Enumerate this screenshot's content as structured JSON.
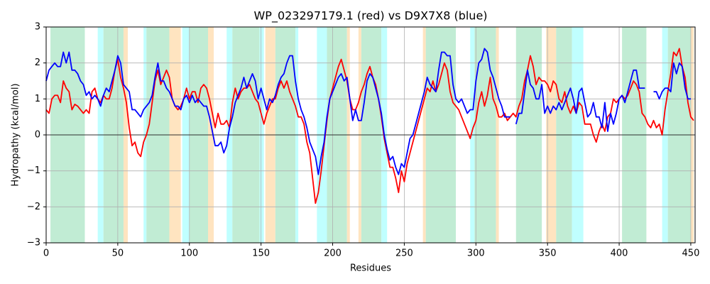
{
  "chart_data": {
    "type": "line",
    "title": "WP_023297179.1 (red) vs D9X7X8 (blue)",
    "x_label": "Residues",
    "y_label": "Hydropathy (kcal/mol)",
    "xlim": [
      0,
      453
    ],
    "ylim": [
      -3,
      3
    ],
    "xticks": [
      0,
      50,
      100,
      150,
      200,
      250,
      300,
      350,
      400,
      450
    ],
    "yticks": [
      {
        "value": -3,
        "label": "−3"
      },
      {
        "value": -2,
        "label": "−2"
      },
      {
        "value": -1,
        "label": "−1"
      },
      0,
      1,
      2,
      3
    ],
    "grid": true,
    "zero_line": true,
    "regions": [
      {
        "x": [
          3,
          27
        ],
        "color": "#c1ecd4"
      },
      {
        "x": [
          36,
          40
        ],
        "color": "#c0ffff"
      },
      {
        "x": [
          40,
          54
        ],
        "color": "#c1ecd4"
      },
      {
        "x": [
          54,
          57
        ],
        "color": "#ffe4c0"
      },
      {
        "x": [
          68,
          70
        ],
        "color": "#c0ffff"
      },
      {
        "x": [
          70,
          86
        ],
        "color": "#c1ecd4"
      },
      {
        "x": [
          86,
          94
        ],
        "color": "#ffe4c0"
      },
      {
        "x": [
          95,
          100
        ],
        "color": "#c0ffff"
      },
      {
        "x": [
          100,
          113
        ],
        "color": "#c1ecd4"
      },
      {
        "x": [
          113,
          117
        ],
        "color": "#ffe4c0"
      },
      {
        "x": [
          126,
          130
        ],
        "color": "#c0ffff"
      },
      {
        "x": [
          130,
          149
        ],
        "color": "#c1ecd4"
      },
      {
        "x": [
          149,
          152
        ],
        "color": "#c0ffff"
      },
      {
        "x": [
          153,
          160
        ],
        "color": "#ffe4c0"
      },
      {
        "x": [
          160,
          174
        ],
        "color": "#c1ecd4"
      },
      {
        "x": [
          174,
          176
        ],
        "color": "#c0ffff"
      },
      {
        "x": [
          189,
          196
        ],
        "color": "#c0ffff"
      },
      {
        "x": [
          196,
          210
        ],
        "color": "#c1ecd4"
      },
      {
        "x": [
          210,
          212
        ],
        "color": "#ffe4c0"
      },
      {
        "x": [
          218,
          220
        ],
        "color": "#ffe4c0"
      },
      {
        "x": [
          220,
          234
        ],
        "color": "#c1ecd4"
      },
      {
        "x": [
          234,
          238
        ],
        "color": "#c0ffff"
      },
      {
        "x": [
          263,
          265
        ],
        "color": "#ffe4c0"
      },
      {
        "x": [
          265,
          286
        ],
        "color": "#c1ecd4"
      },
      {
        "x": [
          296,
          299
        ],
        "color": "#c0ffff"
      },
      {
        "x": [
          299,
          314
        ],
        "color": "#c1ecd4"
      },
      {
        "x": [
          314,
          316
        ],
        "color": "#ffe4c0"
      },
      {
        "x": [
          328,
          346
        ],
        "color": "#c1ecd4"
      },
      {
        "x": [
          349,
          356
        ],
        "color": "#ffe4c0"
      },
      {
        "x": [
          356,
          367
        ],
        "color": "#c1ecd4"
      },
      {
        "x": [
          367,
          375
        ],
        "color": "#c0ffff"
      },
      {
        "x": [
          402,
          419
        ],
        "color": "#c1ecd4"
      },
      {
        "x": [
          430,
          434
        ],
        "color": "#c0ffff"
      },
      {
        "x": [
          434,
          450
        ],
        "color": "#c1ecd4"
      },
      {
        "x": [
          450,
          452
        ],
        "color": "#ffe4c0"
      }
    ],
    "x": [
      0,
      2,
      4,
      6,
      8,
      10,
      12,
      14,
      16,
      18,
      20,
      22,
      24,
      26,
      28,
      30,
      32,
      34,
      36,
      38,
      40,
      42,
      44,
      46,
      48,
      50,
      52,
      54,
      56,
      58,
      60,
      62,
      64,
      66,
      68,
      70,
      72,
      74,
      76,
      78,
      80,
      82,
      84,
      86,
      88,
      90,
      92,
      94,
      96,
      98,
      100,
      102,
      104,
      106,
      108,
      110,
      112,
      114,
      116,
      118,
      120,
      122,
      124,
      126,
      128,
      130,
      132,
      134,
      136,
      138,
      140,
      142,
      144,
      146,
      148,
      150,
      152,
      154,
      156,
      158,
      160,
      162,
      164,
      166,
      168,
      170,
      172,
      174,
      176,
      178,
      180,
      182,
      184,
      186,
      188,
      190,
      192,
      194,
      196,
      198,
      200,
      202,
      204,
      206,
      208,
      210,
      212,
      214,
      216,
      218,
      220,
      222,
      224,
      226,
      228,
      230,
      232,
      234,
      236,
      238,
      240,
      242,
      244,
      246,
      248,
      250,
      252,
      254,
      256,
      258,
      260,
      262,
      264,
      266,
      268,
      270,
      272,
      274,
      276,
      278,
      280,
      282,
      284,
      286,
      288,
      290,
      292,
      294,
      296,
      298,
      300,
      302,
      304,
      306,
      308,
      310,
      312,
      314,
      316,
      318,
      320,
      322,
      324,
      326,
      328,
      330,
      332,
      334,
      336,
      338,
      340,
      342,
      344,
      346,
      348,
      350,
      352,
      354,
      356,
      358,
      360,
      362,
      364,
      366,
      368,
      370,
      372,
      374,
      376,
      378,
      380,
      382,
      384,
      386,
      388,
      390,
      392,
      394,
      396,
      398,
      400,
      402,
      404,
      406,
      408,
      410,
      412,
      414,
      416,
      418,
      420,
      422,
      424,
      426,
      428,
      430,
      432,
      434,
      436,
      438,
      440,
      442,
      444,
      446,
      448,
      450,
      452
    ],
    "series": [
      {
        "color": "red",
        "values": [
          0.7,
          0.6,
          1.0,
          1.1,
          1.1,
          0.9,
          1.5,
          1.3,
          1.2,
          0.7,
          0.85,
          0.8,
          0.7,
          0.6,
          0.7,
          0.6,
          1.2,
          1.3,
          1.0,
          0.9,
          1.1,
          1.0,
          1.0,
          1.3,
          1.8,
          2.1,
          1.6,
          1.3,
          0.9,
          0.2,
          -0.3,
          -0.2,
          -0.5,
          -0.6,
          -0.2,
          0.0,
          0.3,
          0.9,
          1.5,
          1.8,
          1.4,
          1.6,
          1.8,
          1.6,
          1.0,
          0.8,
          0.7,
          0.8,
          1.0,
          1.3,
          1.0,
          1.2,
          1.2,
          0.9,
          1.3,
          1.4,
          1.3,
          1.0,
          0.6,
          0.2,
          0.6,
          0.3,
          0.3,
          0.4,
          0.2,
          0.9,
          1.3,
          1.0,
          1.2,
          1.3,
          1.3,
          1.4,
          1.2,
          1.0,
          0.9,
          0.6,
          0.3,
          0.6,
          0.8,
          1.0,
          1.0,
          1.3,
          1.5,
          1.3,
          1.5,
          1.2,
          1.0,
          0.8,
          0.5,
          0.5,
          0.3,
          -0.2,
          -0.5,
          -1.2,
          -1.9,
          -1.6,
          -1.0,
          -0.3,
          0.4,
          1.0,
          1.3,
          1.6,
          1.9,
          2.1,
          1.8,
          1.5,
          1.0,
          0.7,
          0.7,
          0.9,
          1.2,
          1.4,
          1.7,
          1.9,
          1.6,
          1.4,
          1.0,
          0.5,
          -0.1,
          -0.5,
          -0.9,
          -0.9,
          -1.2,
          -1.6,
          -1.0,
          -1.3,
          -0.8,
          -0.5,
          -0.2,
          0.1,
          0.4,
          0.7,
          1.0,
          1.3,
          1.2,
          1.5,
          1.2,
          1.4,
          1.7,
          2.0,
          1.8,
          1.2,
          0.9,
          0.8,
          0.7,
          0.5,
          0.3,
          0.1,
          -0.1,
          0.2,
          0.4,
          0.9,
          1.2,
          0.8,
          1.1,
          1.6,
          1.0,
          0.8,
          0.5,
          0.5,
          0.6,
          0.4,
          0.5,
          0.6,
          0.5,
          0.8,
          1.0,
          1.5,
          1.8,
          2.2,
          1.9,
          1.4,
          1.6,
          1.5,
          1.5,
          1.4,
          1.2,
          1.5,
          1.4,
          1.0,
          0.9,
          1.2,
          0.8,
          0.6,
          0.8,
          0.6,
          0.9,
          0.8,
          0.3,
          0.3,
          0.3,
          0.0,
          -0.2,
          0.1,
          0.3,
          0.1,
          0.5,
          0.6,
          1.0,
          0.9,
          1.0,
          1.1,
          1.0,
          1.1,
          1.3,
          1.5,
          1.4,
          1.2,
          0.6,
          0.5,
          0.3,
          0.2,
          0.4,
          0.2,
          0.3,
          0.0,
          0.7,
          1.2,
          1.7,
          2.3,
          2.2,
          2.4,
          1.9,
          1.6,
          0.9,
          0.5,
          0.4
        ]
      },
      {
        "color": "blue",
        "values": [
          1.5,
          1.8,
          1.9,
          2.0,
          1.9,
          1.9,
          2.3,
          2.0,
          2.3,
          1.8,
          1.8,
          1.7,
          1.5,
          1.4,
          1.1,
          1.2,
          1.0,
          1.1,
          1.0,
          0.8,
          1.1,
          1.3,
          1.2,
          1.5,
          1.8,
          2.2,
          2.0,
          1.4,
          1.3,
          1.2,
          0.7,
          0.7,
          0.6,
          0.5,
          0.7,
          0.8,
          0.9,
          1.1,
          1.6,
          2.0,
          1.5,
          1.5,
          1.3,
          1.2,
          1.0,
          0.8,
          0.8,
          0.7,
          1.0,
          1.1,
          0.9,
          1.1,
          0.9,
          1.0,
          0.9,
          0.8,
          0.8,
          0.5,
          0.1,
          -0.3,
          -0.3,
          -0.2,
          -0.5,
          -0.3,
          0.2,
          0.5,
          0.9,
          1.1,
          1.3,
          1.6,
          1.3,
          1.5,
          1.7,
          1.5,
          1.0,
          1.3,
          1.0,
          0.7,
          1.0,
          0.9,
          1.1,
          1.4,
          1.6,
          1.7,
          2.0,
          2.2,
          2.2,
          1.5,
          1.0,
          0.7,
          0.5,
          0.2,
          -0.2,
          -0.4,
          -0.6,
          -1.1,
          -0.6,
          -0.2,
          0.5,
          1.0,
          1.2,
          1.4,
          1.6,
          1.7,
          1.5,
          1.6,
          1.0,
          0.4,
          0.7,
          0.4,
          0.4,
          0.9,
          1.5,
          1.7,
          1.6,
          1.3,
          1.0,
          0.6,
          0.0,
          -0.4,
          -0.7,
          -0.6,
          -0.9,
          -1.1,
          -0.8,
          -0.9,
          -0.5,
          -0.1,
          0.0,
          0.3,
          0.6,
          0.9,
          1.2,
          1.6,
          1.4,
          1.3,
          1.2,
          1.8,
          2.3,
          2.3,
          2.2,
          2.2,
          1.4,
          1.0,
          0.9,
          1.0,
          0.8,
          0.6,
          0.7,
          0.7,
          1.5,
          2.0,
          2.1,
          2.4,
          2.3,
          1.8,
          1.6,
          1.3,
          1.0,
          0.8,
          0.5,
          0.5,
          0.5,
          null,
          0.3,
          0.6,
          0.6,
          1.2,
          1.8,
          1.4,
          1.3,
          1.0,
          1.0,
          1.4,
          0.6,
          0.8,
          0.6,
          0.8,
          0.7,
          0.9,
          0.7,
          0.9,
          1.1,
          1.3,
          1.0,
          0.6,
          1.2,
          1.3,
          0.9,
          0.5,
          0.6,
          0.9,
          0.5,
          0.5,
          0.2,
          0.9,
          0.1,
          0.6,
          0.3,
          0.6,
          1.0,
          1.1,
          0.9,
          1.2,
          1.5,
          1.8,
          1.8,
          1.3,
          1.3,
          1.3,
          null,
          null,
          1.2,
          1.2,
          1.0,
          1.2,
          1.3,
          1.3,
          1.2,
          2.0,
          1.7,
          2.0,
          1.9,
          1.3,
          1.0,
          1.0,
          null
        ]
      }
    ]
  }
}
